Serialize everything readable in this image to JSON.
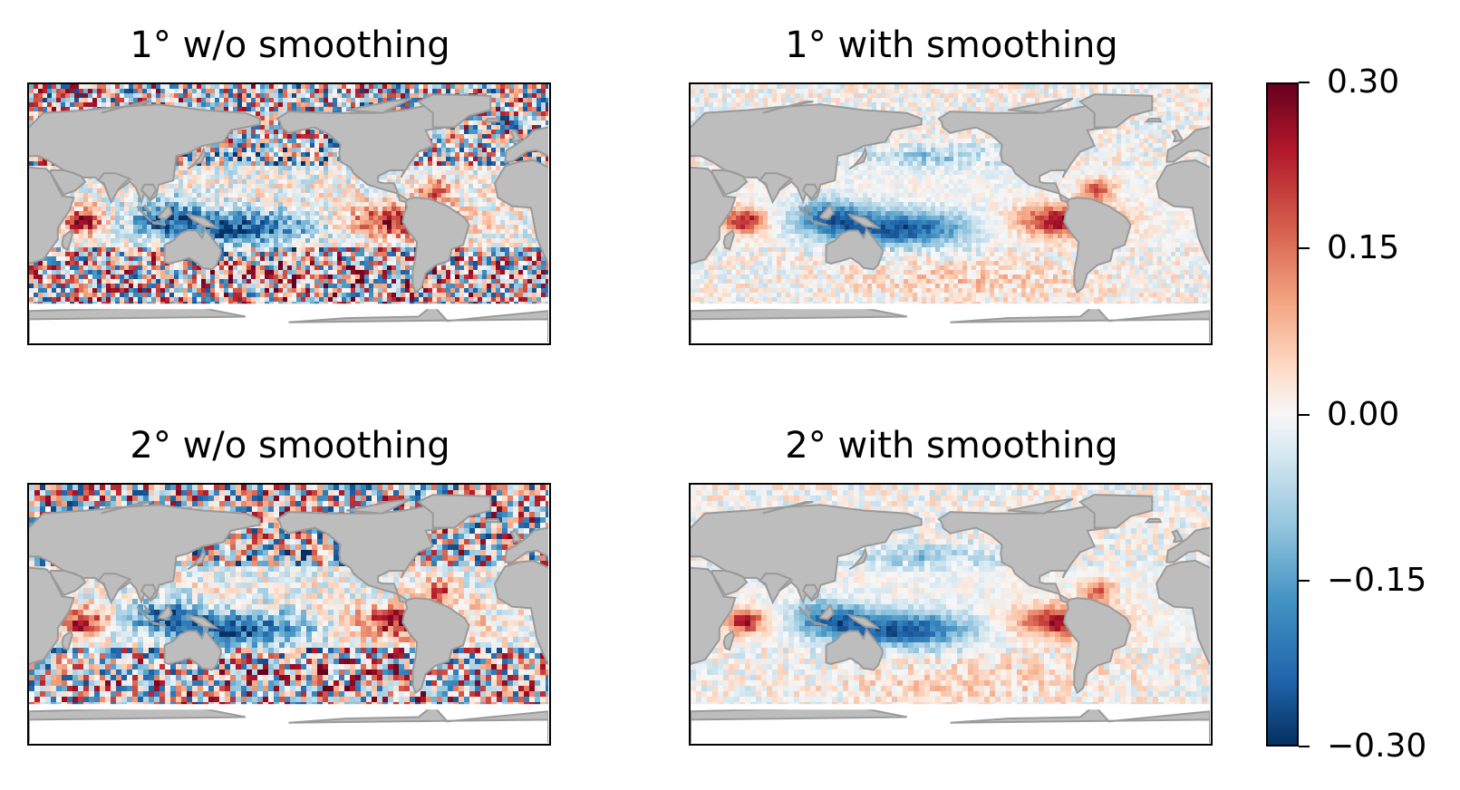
{
  "chart_data": [
    {
      "type": "heatmap",
      "title": "1° w/o smoothing",
      "colormap": "RdBu_r",
      "vmin": -0.3,
      "vmax": 0.3
    },
    {
      "type": "heatmap",
      "title": "1° with smoothing",
      "colormap": "RdBu_r",
      "vmin": -0.3,
      "vmax": 0.3
    },
    {
      "type": "heatmap",
      "title": "2° w/o smoothing",
      "colormap": "RdBu_r",
      "vmin": -0.3,
      "vmax": 0.3
    },
    {
      "type": "heatmap",
      "title": "2° with smoothing",
      "colormap": "RdBu_r",
      "vmin": -0.3,
      "vmax": 0.3
    }
  ],
  "colorbar": {
    "ticks": [
      "0.30",
      "0.15",
      "0.00",
      "−0.15",
      "−0.30"
    ],
    "tick_values": [
      0.3,
      0.15,
      0.0,
      -0.15,
      -0.3
    ],
    "vmin": -0.3,
    "vmax": 0.3
  },
  "colors": {
    "land": "#bdbdbd",
    "coast": "#9a9a9a",
    "positive": "#b2182b",
    "negative": "#2166ac",
    "neutral": "#f7f7f7"
  }
}
